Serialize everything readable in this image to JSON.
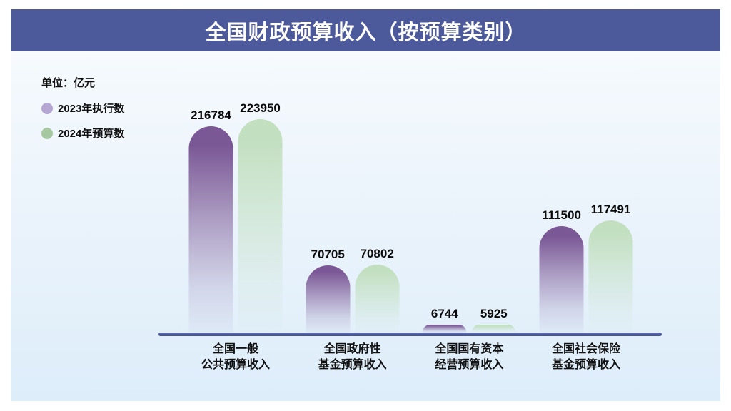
{
  "title": "全国财政预算收入（按预算类别）",
  "unit_label": "单位：亿元",
  "colors": {
    "title_bar_bg": "#4c5a9c",
    "axis_line": "#4c5a9c",
    "series_2023_bar": "#7a5795",
    "series_2024_bar": "#c2dfc0",
    "legend_2023_dot": "#b5a6d4",
    "legend_2024_dot": "#a6c8a1",
    "background_tint": "#e4f0fa"
  },
  "legend": [
    {
      "label": "2023年执行数",
      "color": "#b5a6d4"
    },
    {
      "label": "2024年预算数",
      "color": "#a6c8a1"
    }
  ],
  "chart_data": {
    "type": "bar",
    "title": "全国财政预算收入（按预算类别）",
    "unit": "亿元",
    "categories": [
      "全国一般\n公共预算收入",
      "全国政府性\n基金预算收入",
      "全国国有资本\n经营预算收入",
      "全国社会保险\n基金预算收入"
    ],
    "series": [
      {
        "name": "2023年执行数",
        "color": "#7a5795",
        "values": [
          216784,
          70705,
          6744,
          111500
        ]
      },
      {
        "name": "2024年预算数",
        "color": "#c2dfc0",
        "values": [
          223950,
          70802,
          5925,
          117491
        ]
      }
    ],
    "value_labels": true,
    "grid": false,
    "legend_position": "top-left",
    "y_axis_shown": false,
    "baseline_color": "#4c5a9c"
  }
}
